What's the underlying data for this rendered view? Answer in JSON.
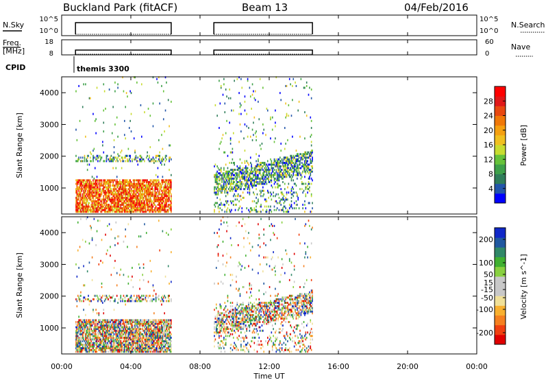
{
  "header": {
    "station": "Buckland Park (fitACF)",
    "beam": "Beam 13",
    "date": "04/Feb/2016"
  },
  "noise_panel": {
    "left_label": "N.Sky",
    "left_ticks": [
      "10^5",
      "10^0"
    ],
    "right_label": "N.Search",
    "right_ticks": [
      "10^5",
      "10^0"
    ]
  },
  "freq_panel": {
    "left_label_1": "Freq.",
    "left_label_2": "[MHz]",
    "left_ticks": [
      "18",
      "8"
    ],
    "right_label": "Nave",
    "right_ticks": [
      "60",
      "0"
    ]
  },
  "cpid": {
    "label": "CPID",
    "value": "themis 3300"
  },
  "x_axis": {
    "label": "Time UT",
    "ticks": [
      "00:00",
      "04:00",
      "08:00",
      "12:00",
      "16:00",
      "20:00",
      "00:00"
    ]
  },
  "colors": {
    "power_scale": [
      "#0000ff",
      "#2255aa",
      "#2f7d5a",
      "#3ea04a",
      "#66c23a",
      "#c8dc30",
      "#f0c020",
      "#f5a010",
      "#f07808",
      "#e84810",
      "#e01818",
      "#ff0000"
    ],
    "velocity_scale": [
      "#e00000",
      "#f04010",
      "#f58020",
      "#f8b030",
      "#f0e098",
      "#c8c8c8",
      "#c8c8c8",
      "#88d040",
      "#40b030",
      "#308868",
      "#2058a0",
      "#1028c8"
    ]
  },
  "chart_data": [
    {
      "type": "heatmap",
      "panel": "power",
      "xlabel": "Time UT",
      "ylabel": "Slant Range [km]",
      "xlim": [
        0,
        24
      ],
      "ylim": [
        180,
        4500
      ],
      "yticks": [
        "1000",
        "2000",
        "3000",
        "4000"
      ],
      "colorbar": {
        "label": "Power [dB]",
        "min": 0,
        "max": 32,
        "ticks": [
          "4",
          "8",
          "12",
          "16",
          "20",
          "24",
          "28"
        ]
      },
      "data_coverage": [
        {
          "start": "00:48",
          "end": "06:20"
        },
        {
          "start": "08:48",
          "end": "14:30"
        }
      ]
    },
    {
      "type": "heatmap",
      "panel": "velocity",
      "xlabel": "Time UT",
      "ylabel": "Slant Range [km]",
      "xlim": [
        0,
        24
      ],
      "ylim": [
        180,
        4500
      ],
      "yticks": [
        "1000",
        "2000",
        "3000",
        "4000"
      ],
      "colorbar": {
        "label": "Velocity [m s^-1]",
        "min": -250,
        "max": 250,
        "ticks": [
          "-200",
          "-100",
          "-50",
          "-15",
          "15",
          "50",
          "100",
          "200"
        ]
      },
      "data_coverage": [
        {
          "start": "00:48",
          "end": "06:20"
        },
        {
          "start": "08:48",
          "end": "14:30"
        }
      ]
    }
  ]
}
